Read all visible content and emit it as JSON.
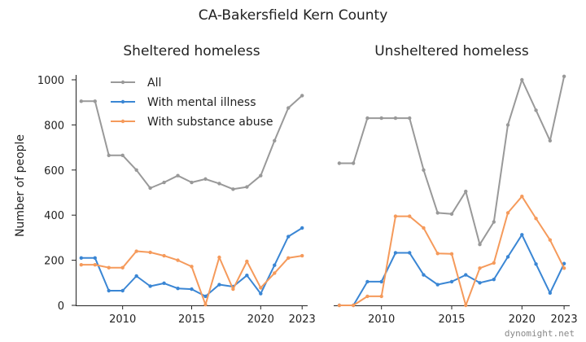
{
  "title": "CA-Bakersfield Kern County",
  "ylabel": "Number of people",
  "watermark": "dynomight.net",
  "legend": [
    "All",
    "With mental illness",
    "With substance abuse"
  ],
  "colors": {
    "All": "#999999",
    "With mental illness": "#3a86d4",
    "With substance abuse": "#f59a5b"
  },
  "chart_data": [
    {
      "type": "line",
      "title": "Sheltered homeless",
      "x": [
        2007,
        2008,
        2009,
        2010,
        2011,
        2012,
        2013,
        2014,
        2015,
        2016,
        2017,
        2018,
        2019,
        2020,
        2021,
        2022,
        2023
      ],
      "xticks": [
        2010,
        2015,
        2020,
        2023
      ],
      "yticks": [
        0,
        200,
        400,
        600,
        800,
        1000
      ],
      "ylim": [
        0,
        1000
      ],
      "xlim": [
        2006.6,
        2023.4
      ],
      "series": [
        {
          "name": "All",
          "values": [
            905,
            905,
            665,
            665,
            600,
            520,
            545,
            575,
            545,
            560,
            540,
            515,
            525,
            575,
            730,
            875,
            930
          ]
        },
        {
          "name": "With mental illness",
          "values": [
            210,
            210,
            65,
            65,
            130,
            85,
            98,
            75,
            72,
            40,
            92,
            83,
            133,
            52,
            178,
            305,
            343
          ]
        },
        {
          "name": "With substance abuse",
          "values": [
            180,
            180,
            167,
            167,
            240,
            235,
            220,
            200,
            172,
            3,
            213,
            72,
            195,
            78,
            143,
            210,
            220
          ]
        }
      ]
    },
    {
      "type": "line",
      "title": "Unsheltered homeless",
      "x": [
        2007,
        2008,
        2009,
        2010,
        2011,
        2012,
        2013,
        2014,
        2015,
        2016,
        2017,
        2018,
        2019,
        2020,
        2021,
        2022,
        2023
      ],
      "xticks": [
        2010,
        2015,
        2020,
        2023
      ],
      "yticks": [
        0,
        200,
        400,
        600,
        800,
        1000
      ],
      "ylim": [
        0,
        1000
      ],
      "xlim": [
        2006.6,
        2023.4
      ],
      "series": [
        {
          "name": "All",
          "values": [
            630,
            630,
            830,
            830,
            830,
            830,
            600,
            410,
            405,
            505,
            270,
            370,
            800,
            1000,
            865,
            730,
            1015
          ]
        },
        {
          "name": "With mental illness",
          "values": [
            0,
            0,
            105,
            105,
            233,
            233,
            135,
            92,
            105,
            135,
            100,
            115,
            215,
            313,
            183,
            55,
            185
          ]
        },
        {
          "name": "With substance abuse",
          "values": [
            0,
            0,
            40,
            40,
            395,
            395,
            343,
            230,
            228,
            0,
            165,
            188,
            410,
            483,
            385,
            290,
            165
          ]
        }
      ]
    }
  ]
}
